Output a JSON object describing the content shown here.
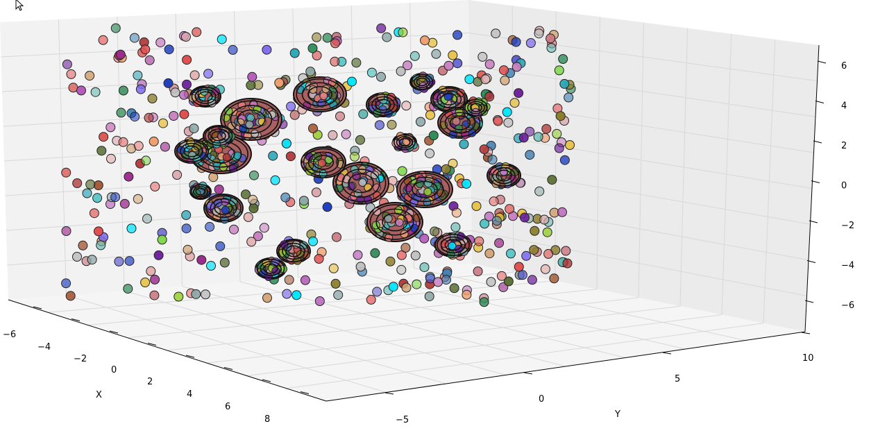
{
  "chart_data": {
    "type": "scatter",
    "projection": "3d",
    "xlabel": "X",
    "ylabel": "Y",
    "zlabel": "",
    "xlim": [
      -7,
      9
    ],
    "ylim": [
      -7,
      11
    ],
    "zlim": [
      -7,
      7
    ],
    "x_ticks": [
      "−6",
      "−4",
      "−2",
      "0",
      "2",
      "4",
      "6",
      "8"
    ],
    "y_ticks": [
      "−5",
      "0",
      "5",
      "10"
    ],
    "z_ticks": [
      "6",
      "4",
      "2",
      "0",
      "−2",
      "−4",
      "−6"
    ],
    "grid": true,
    "legend": "none",
    "marker": "circle",
    "cluster_count": 22,
    "colors": [
      "#b03a3a",
      "#d9534f",
      "#e87a7a",
      "#c97b84",
      "#d8a7ad",
      "#5fb8b0",
      "#3fbfbf",
      "#2aa6b8",
      "#1f3fbf",
      "#5a5acd",
      "#7b68ee",
      "#6a1b9a",
      "#9c2a8c",
      "#b35ab8",
      "#c77dc0",
      "#7fd64b",
      "#9acd32",
      "#556b2f",
      "#2e8b57",
      "#8b7d2a",
      "#e6c040",
      "#f0a070",
      "#d2a679",
      "#a0522d",
      "#00e5ff",
      "#4682b4",
      "#8fa8a8",
      "#c0c0c0",
      "#e4b0b0",
      "#e05050"
    ]
  },
  "ui": {
    "cursor": "arrow-pointer"
  }
}
